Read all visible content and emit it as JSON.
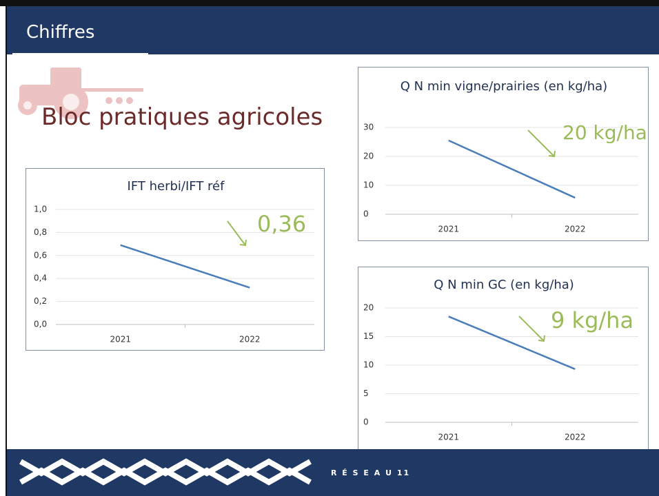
{
  "header": {
    "title": "Chiffres"
  },
  "section_title": "Bloc pratiques agricoles",
  "footer": {
    "brand": "R É S E A U 11"
  },
  "chart_data": [
    {
      "type": "line",
      "title": "IFT herbi/IFT réf",
      "categories": [
        "2021",
        "2022"
      ],
      "series": [
        {
          "name": "IFT herbi/IFT réf",
          "color": "#4a7ebb",
          "values": [
            0.69,
            0.32
          ]
        }
      ],
      "ylim": [
        0,
        1
      ],
      "yticks": [
        {
          "value": 0,
          "label": "0,0"
        },
        {
          "value": 0.2,
          "label": "0,2"
        },
        {
          "value": 0.4,
          "label": "0,4"
        },
        {
          "value": 0.6,
          "label": "0,6"
        },
        {
          "value": 0.8,
          "label": "0,8"
        },
        {
          "value": 1,
          "label": "1,0"
        }
      ],
      "grid": true,
      "annotation": "0,36"
    },
    {
      "type": "line",
      "title": "Q N min vigne/prairies (en kg/ha)",
      "categories": [
        "2021",
        "2022"
      ],
      "series": [
        {
          "name": "Q N min vigne/prairies (en kg/ha)",
          "color": "#4a7ebb",
          "values": [
            25.5,
            5.7
          ]
        }
      ],
      "ylim": [
        0,
        30
      ],
      "yticks": [
        0,
        10,
        20,
        30
      ],
      "grid": true,
      "annotation": "20 kg/ha"
    },
    {
      "type": "line",
      "title": "Q N min GC (en kg/ha)",
      "categories": [
        "2021",
        "2022"
      ],
      "series": [
        {
          "name": "Q N min GC (en kg/ha)",
          "color": "#4a7ebb",
          "values": [
            18.5,
            9.3
          ]
        }
      ],
      "ylim": [
        0,
        20
      ],
      "yticks": [
        0,
        5,
        10,
        15,
        20
      ],
      "grid": true,
      "annotation": "9 kg/ha"
    }
  ]
}
